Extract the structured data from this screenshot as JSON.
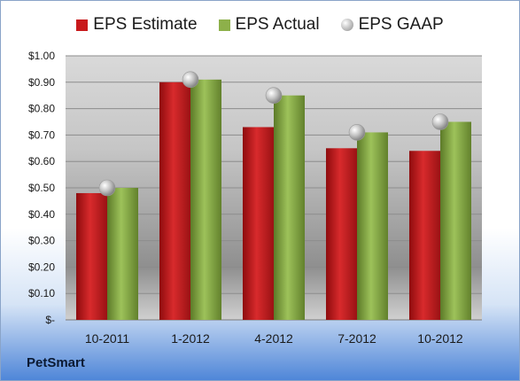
{
  "chart_data": {
    "type": "bar",
    "categories": [
      "10-2011",
      "1-2012",
      "4-2012",
      "7-2012",
      "10-2012"
    ],
    "series": [
      {
        "name": "EPS Estimate",
        "values": [
          0.48,
          0.9,
          0.73,
          0.65,
          0.64
        ],
        "color": "#c8191b"
      },
      {
        "name": "EPS Actual",
        "values": [
          0.5,
          0.91,
          0.85,
          0.71,
          0.75
        ],
        "color": "#8db04a"
      },
      {
        "name": "EPS GAAP",
        "values": [
          0.5,
          0.91,
          0.85,
          0.71,
          0.75
        ],
        "color": "#b8b8b8",
        "kind": "marker"
      }
    ],
    "y_ticks": [
      "$-",
      "$0.10",
      "$0.20",
      "$0.30",
      "$0.40",
      "$0.50",
      "$0.60",
      "$0.70",
      "$0.80",
      "$0.90",
      "$1.00"
    ],
    "ylim": [
      0,
      1.0
    ],
    "grid": true,
    "legend_position": "top"
  },
  "company_label": "PetSmart"
}
